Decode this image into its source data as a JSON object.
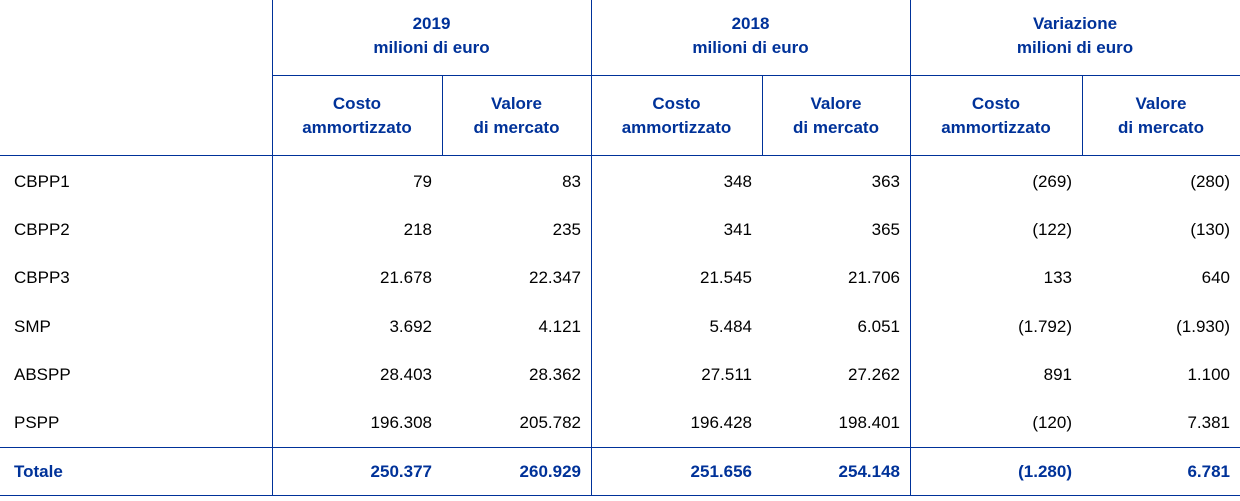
{
  "header": {
    "groups": [
      [
        "2019",
        "milioni di euro"
      ],
      [
        "2018",
        "milioni di euro"
      ],
      [
        "Variazione",
        "milioni di euro"
      ]
    ],
    "columns": [
      [
        "Costo",
        "ammortizzato"
      ],
      [
        "Valore",
        "di mercato"
      ],
      [
        "Costo",
        "ammortizzato"
      ],
      [
        "Valore",
        "di mercato"
      ],
      [
        "Costo",
        "ammortizzato"
      ],
      [
        "Valore",
        "di mercato"
      ]
    ]
  },
  "table": {
    "rows": [
      {
        "label": "CBPP1",
        "values": [
          "79",
          "83",
          "348",
          "363",
          "(269)",
          "(280)"
        ]
      },
      {
        "label": "CBPP2",
        "values": [
          "218",
          "235",
          "341",
          "365",
          "(122)",
          "(130)"
        ]
      },
      {
        "label": "CBPP3",
        "values": [
          "21.678",
          "22.347",
          "21.545",
          "21.706",
          "133",
          "640"
        ]
      },
      {
        "label": "SMP",
        "values": [
          "3.692",
          "4.121",
          "5.484",
          "6.051",
          "(1.792)",
          "(1.930)"
        ]
      },
      {
        "label": "ABSPP",
        "values": [
          "28.403",
          "28.362",
          "27.511",
          "27.262",
          "891",
          "1.100"
        ]
      },
      {
        "label": "PSPP",
        "values": [
          "196.308",
          "205.782",
          "196.428",
          "198.401",
          "(120)",
          "7.381"
        ]
      }
    ],
    "total": {
      "label": "Totale",
      "values": [
        "250.377",
        "260.929",
        "251.656",
        "254.148",
        "(1.280)",
        "6.781"
      ]
    }
  }
}
